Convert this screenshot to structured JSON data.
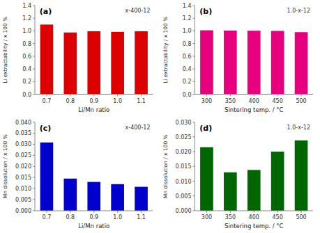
{
  "chart_data": [
    {
      "type": "bar",
      "title": "(a)",
      "annotation": "x-400-12",
      "categories": [
        "0.7",
        "0.8",
        "0.9",
        "1.0",
        "1.1"
      ],
      "values": [
        1.1,
        0.975,
        0.995,
        0.985,
        0.995
      ],
      "color": "#dd0000",
      "xlabel": "Li/Mn ratio",
      "ylabel": "Li extractability / x 100 %",
      "ylim": [
        0.0,
        1.4
      ],
      "yticks": [
        {
          "value": 0.0,
          "label": "0.0"
        },
        0.2,
        0.4,
        0.6,
        0.8,
        {
          "value": 1.0,
          "label": "1.0"
        },
        1.2,
        1.4
      ],
      "grid": false
    },
    {
      "type": "bar",
      "title": "(b)",
      "annotation": "1.0-x-12",
      "categories": [
        "300",
        "350",
        "400",
        "450",
        "500"
      ],
      "values": [
        1.01,
        1.005,
        1.003,
        1.0,
        0.98
      ],
      "color": "#e6007e",
      "xlabel": "Sintering temp. / °C",
      "ylabel": "Li extractability / x 100 %",
      "ylim": [
        0.0,
        1.4
      ],
      "yticks": [
        {
          "value": 0.0,
          "label": "0.0"
        },
        0.2,
        0.4,
        0.6,
        0.8,
        {
          "value": 1.0,
          "label": "1.0"
        },
        1.2,
        1.4
      ],
      "grid": false
    },
    {
      "type": "bar",
      "title": "(c)",
      "annotation": "x-400-12",
      "categories": [
        "0.7",
        "0.8",
        "0.9",
        "1.0",
        "1.1"
      ],
      "values": [
        0.0308,
        0.0145,
        0.013,
        0.012,
        0.0108
      ],
      "color": "#0000cc",
      "xlabel": "Li/Mn ratio",
      "ylabel": "Mn dissolution / x 100 %",
      "ylim": [
        0.0,
        0.04
      ],
      "yticks": [
        {
          "value": 0.0,
          "label": "0.000"
        },
        0.005,
        {
          "value": 0.01,
          "label": "0.010"
        },
        0.015,
        {
          "value": 0.02,
          "label": "0.020"
        },
        0.025,
        {
          "value": 0.03,
          "label": "0.030"
        },
        0.035,
        {
          "value": 0.04,
          "label": "0.040"
        }
      ],
      "grid": false
    },
    {
      "type": "bar",
      "title": "(d)",
      "annotation": "1.0-x-12",
      "categories": [
        "300",
        "350",
        "400",
        "450",
        "500"
      ],
      "values": [
        0.0215,
        0.013,
        0.0138,
        0.02,
        0.0238
      ],
      "color": "#006600",
      "xlabel": "Sintering temp. / °C",
      "ylabel": "Mn dissolution / x 100 %",
      "ylim": [
        0.0,
        0.03
      ],
      "yticks": [
        {
          "value": 0.0,
          "label": "0.000"
        },
        0.005,
        {
          "value": 0.01,
          "label": "0.010"
        },
        0.015,
        {
          "value": 0.02,
          "label": "0.020"
        },
        0.025,
        {
          "value": 0.03,
          "label": "0.030"
        }
      ],
      "grid": false
    }
  ]
}
